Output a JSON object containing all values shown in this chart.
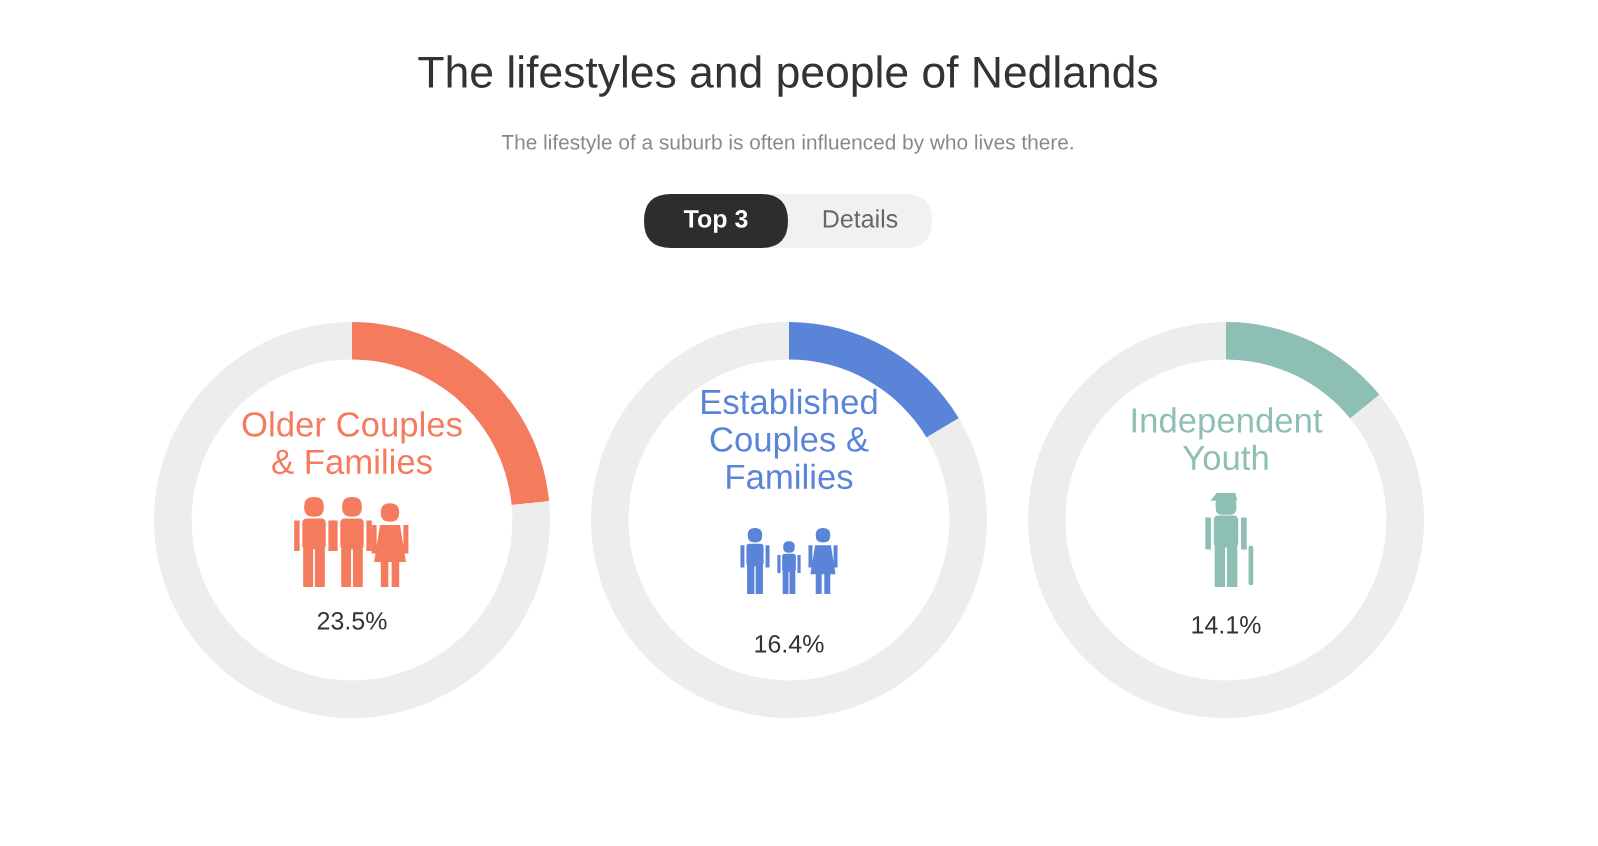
{
  "chart_data": [
    {
      "type": "other",
      "title": "The lifestyles and people of Nedlands",
      "subtitle": "The lifestyle of a suburb is often influenced by who lives there.",
      "annotations": [
        "Top 3",
        "Details"
      ]
    },
    {
      "type": "donut",
      "categories": [
        "Older Couples\n& Families",
        null
      ],
      "values": [
        23.5,
        76.5
      ],
      "colors": [
        "#f47b5e",
        "#ededed"
      ],
      "annotations": [
        "23.5%"
      ]
    },
    {
      "type": "donut",
      "categories": [
        "Established\nCouples &\nFamilies",
        null
      ],
      "values": [
        16.4,
        83.6
      ],
      "colors": [
        "#5a84d8",
        "#ededed"
      ],
      "annotations": [
        "16.4%"
      ]
    },
    {
      "type": "donut",
      "categories": [
        "Independent\nYouth",
        null
      ],
      "values": [
        14.1,
        85.9
      ],
      "colors": [
        "#8dbfb4",
        "#ededed"
      ],
      "annotations": [
        "14.1%"
      ]
    }
  ]
}
